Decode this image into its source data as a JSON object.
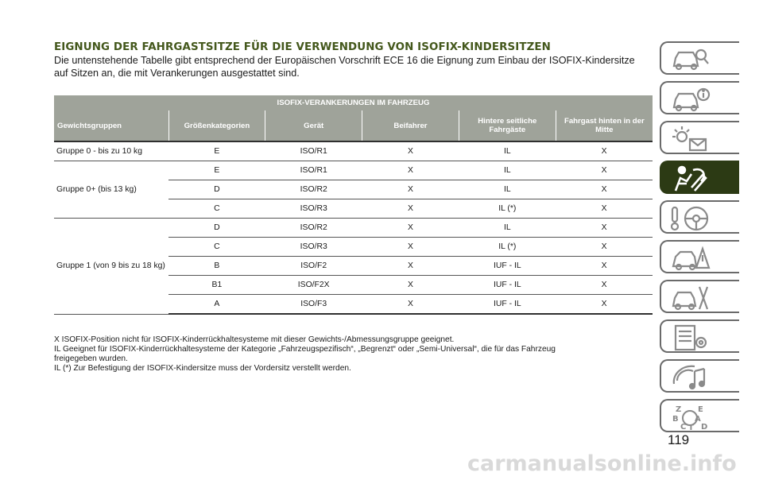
{
  "title": "EIGNUNG DER FAHRGASTSITZE FÜR DIE VERWENDUNG VON ISOFIX-KINDERSITZEN",
  "intro": [
    "Die untenstehende Tabelle gibt entsprechend der Europäischen Vorschrift ECE 16 die Eignung zum Einbau der ISOFIX-Kindersitze",
    "auf Sitzen an, die mit Verankerungen ausgestattet sind."
  ],
  "table": {
    "group_header": "ISOFIX-VERANKERUNGEN IM FAHRZEUG",
    "columns": [
      "Gewichtsgruppen",
      "Größenkategorien",
      "Gerät",
      "Beifahrer",
      "Hintere seitliche Fahrgäste",
      "Fahrgast hinten in der Mitte"
    ],
    "groups": [
      {
        "label": "Gruppe 0 - bis zu 10 kg",
        "rows": [
          [
            "E",
            "ISO/R1",
            "X",
            "IL",
            "X"
          ]
        ]
      },
      {
        "label": "Gruppe 0+ (bis 13 kg)",
        "rows": [
          [
            "E",
            "ISO/R1",
            "X",
            "IL",
            "X"
          ],
          [
            "D",
            "ISO/R2",
            "X",
            "IL",
            "X"
          ],
          [
            "C",
            "ISO/R3",
            "X",
            "IL (*)",
            "X"
          ]
        ]
      },
      {
        "label": "Gruppe 1 (von 9 bis zu 18 kg)",
        "rows": [
          [
            "D",
            "ISO/R2",
            "X",
            "IL",
            "X"
          ],
          [
            "C",
            "ISO/R3",
            "X",
            "IL (*)",
            "X"
          ],
          [
            "B",
            "ISO/F2",
            "X",
            "IUF - IL",
            "X"
          ],
          [
            "B1",
            "ISO/F2X",
            "X",
            "IUF - IL",
            "X"
          ],
          [
            "A",
            "ISO/F3",
            "X",
            "IUF - IL",
            "X"
          ]
        ]
      }
    ]
  },
  "notes": [
    "X ISOFIX-Position nicht für ISOFIX-Kinderrückhaltesysteme mit dieser Gewichts-/Abmessungsgruppe geeignet.",
    "IL Geeignet für ISOFIX-Kinderrückhaltesysteme der Kategorie „Fahrzeugspezifisch“, „Begrenzt“ oder „Semi-Universal“, die für das Fahrzeug",
    "freigegeben wurden.",
    "IL (*) Zur Befestigung der ISOFIX-Kindersitze muss der Vordersitz verstellt werden."
  ],
  "sidebar_tabs": [
    {
      "icon": "car-magnifier-icon",
      "active": false
    },
    {
      "icon": "car-info-icon",
      "active": false
    },
    {
      "icon": "warning-lights-message-icon",
      "active": false
    },
    {
      "icon": "airbag-safety-icon",
      "active": true
    },
    {
      "icon": "key-steering-wheel-icon",
      "active": false
    },
    {
      "icon": "car-breakdown-warning-icon",
      "active": false
    },
    {
      "icon": "car-maintenance-tools-icon",
      "active": false
    },
    {
      "icon": "technical-data-list-icon",
      "active": false
    },
    {
      "icon": "multimedia-music-icon",
      "active": false
    },
    {
      "icon": "alphabetical-index-icon",
      "active": false
    }
  ],
  "tab_index_letters": [
    "Z",
    "E",
    "B",
    "A",
    "C",
    "T",
    "D"
  ],
  "page_number": "119",
  "watermark": "carmanualsonline.info",
  "colors": {
    "title": "#44581c",
    "table_header": "#9fa39a",
    "active_tab": "#2c3a14"
  }
}
